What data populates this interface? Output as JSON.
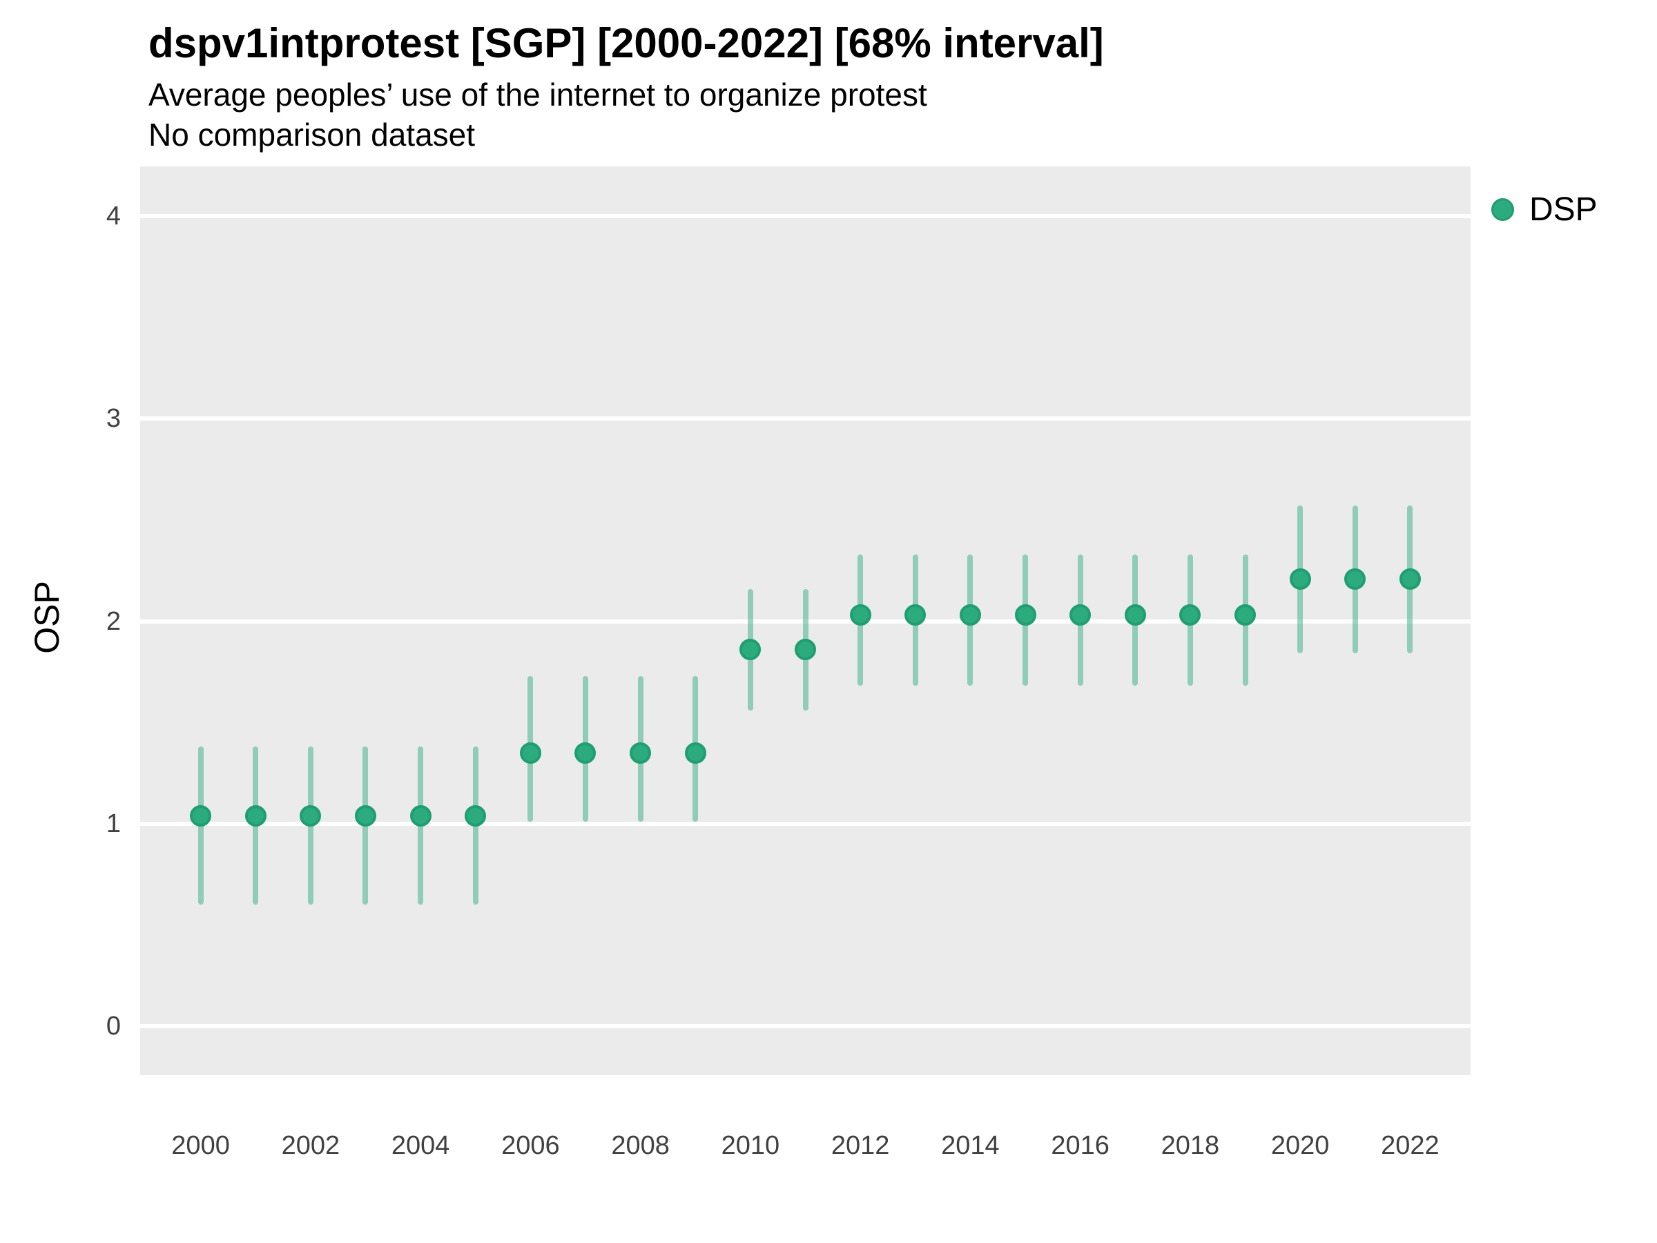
{
  "header": {
    "title": "dspv1intprotest [SGP] [2000-2022] [68% interval]",
    "subtitle1": "Average peoples’ use of the internet to organize protest",
    "subtitle2": "No comparison dataset"
  },
  "y_axis_title": "OSP",
  "legend": {
    "label": "DSP"
  },
  "colors": {
    "panel_background": "#EBEBEB",
    "gridline": "#FFFFFF",
    "point_fill": "#2CAB7F",
    "point_stroke": "#1F9E71",
    "interval_bar": "rgba(44,171,127,0.48)",
    "tick_text": "#404040",
    "title_text": "#000000"
  },
  "chart_data": {
    "type": "scatter",
    "title": "dspv1intprotest [SGP] [2000-2022] [68% interval]",
    "subtitle": "Average peoples’ use of the internet to organize protest",
    "note": "No comparison dataset",
    "ylabel": "OSP",
    "xlabel": "",
    "interval_level": "68%",
    "grid": "horizontal-major-only",
    "legend_position": "right-top",
    "xlim": [
      1998.9,
      2023.1
    ],
    "ylim": [
      -0.242,
      4.246
    ],
    "x_ticks": [
      2000,
      2002,
      2004,
      2006,
      2008,
      2010,
      2012,
      2014,
      2016,
      2018,
      2020,
      2022
    ],
    "y_ticks": [
      0,
      1,
      2,
      3,
      4
    ],
    "series": [
      {
        "name": "DSP",
        "points": [
          {
            "year": 2000,
            "value": 1.04,
            "lo": 0.6,
            "hi": 1.38
          },
          {
            "year": 2001,
            "value": 1.04,
            "lo": 0.6,
            "hi": 1.38
          },
          {
            "year": 2002,
            "value": 1.04,
            "lo": 0.6,
            "hi": 1.38
          },
          {
            "year": 2003,
            "value": 1.04,
            "lo": 0.6,
            "hi": 1.38
          },
          {
            "year": 2004,
            "value": 1.04,
            "lo": 0.6,
            "hi": 1.38
          },
          {
            "year": 2005,
            "value": 1.04,
            "lo": 0.6,
            "hi": 1.38
          },
          {
            "year": 2006,
            "value": 1.35,
            "lo": 1.01,
            "hi": 1.73
          },
          {
            "year": 2007,
            "value": 1.35,
            "lo": 1.01,
            "hi": 1.73
          },
          {
            "year": 2008,
            "value": 1.35,
            "lo": 1.01,
            "hi": 1.73
          },
          {
            "year": 2009,
            "value": 1.35,
            "lo": 1.01,
            "hi": 1.73
          },
          {
            "year": 2010,
            "value": 1.86,
            "lo": 1.56,
            "hi": 2.16
          },
          {
            "year": 2011,
            "value": 1.86,
            "lo": 1.56,
            "hi": 2.16
          },
          {
            "year": 2012,
            "value": 2.03,
            "lo": 1.68,
            "hi": 2.33
          },
          {
            "year": 2013,
            "value": 2.03,
            "lo": 1.68,
            "hi": 2.33
          },
          {
            "year": 2014,
            "value": 2.03,
            "lo": 1.68,
            "hi": 2.33
          },
          {
            "year": 2015,
            "value": 2.03,
            "lo": 1.68,
            "hi": 2.33
          },
          {
            "year": 2016,
            "value": 2.03,
            "lo": 1.68,
            "hi": 2.33
          },
          {
            "year": 2017,
            "value": 2.03,
            "lo": 1.68,
            "hi": 2.33
          },
          {
            "year": 2018,
            "value": 2.03,
            "lo": 1.68,
            "hi": 2.33
          },
          {
            "year": 2019,
            "value": 2.03,
            "lo": 1.68,
            "hi": 2.33
          },
          {
            "year": 2020,
            "value": 2.21,
            "lo": 1.84,
            "hi": 2.57
          },
          {
            "year": 2021,
            "value": 2.21,
            "lo": 1.84,
            "hi": 2.57
          },
          {
            "year": 2022,
            "value": 2.21,
            "lo": 1.84,
            "hi": 2.57
          }
        ]
      }
    ]
  }
}
